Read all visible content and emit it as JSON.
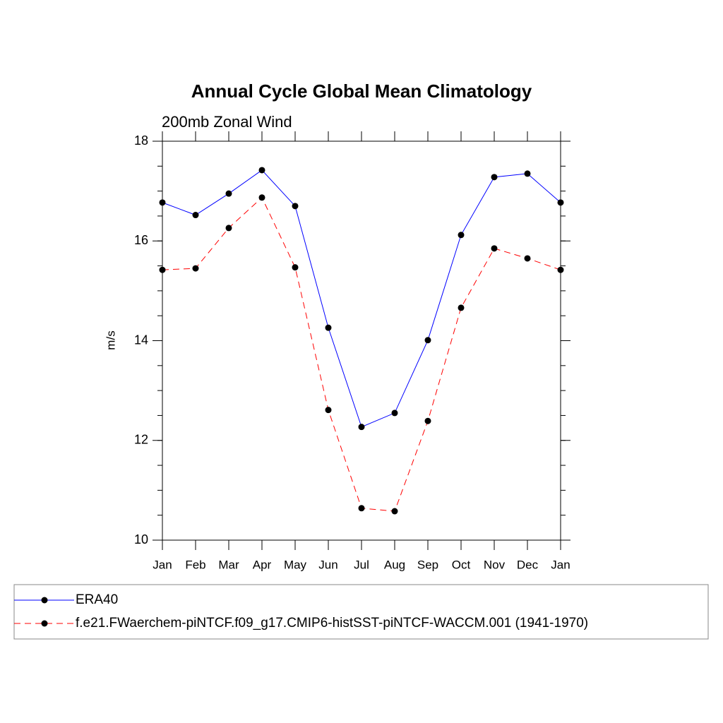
{
  "chart_data": {
    "type": "line",
    "title": "Annual Cycle Global Mean Climatology",
    "subtitle": "200mb Zonal Wind",
    "y_label": "m/s",
    "categories": [
      "Jan",
      "Feb",
      "Mar",
      "Apr",
      "May",
      "Jun",
      "Jul",
      "Aug",
      "Sep",
      "Oct",
      "Nov",
      "Dec",
      "Jan"
    ],
    "series": [
      {
        "name": "ERA40",
        "color": "#0000ff",
        "dash": false,
        "values": [
          16.77,
          16.52,
          16.95,
          17.42,
          16.7,
          14.26,
          12.27,
          12.55,
          14.01,
          16.12,
          17.28,
          17.35,
          16.77
        ]
      },
      {
        "name": "f.e21.FWaerchem-piNTCF.f09_g17.CMIP6-histSST-piNTCF-WACCM.001 (1941-1970)",
        "color": "#ff0000",
        "dash": true,
        "values": [
          15.42,
          15.45,
          16.26,
          16.87,
          15.47,
          12.61,
          10.64,
          10.58,
          12.39,
          14.66,
          15.85,
          15.65,
          15.42
        ]
      }
    ],
    "ylim": [
      10,
      18
    ],
    "yticks": [
      10,
      12,
      14,
      16,
      18
    ],
    "grid": false
  }
}
